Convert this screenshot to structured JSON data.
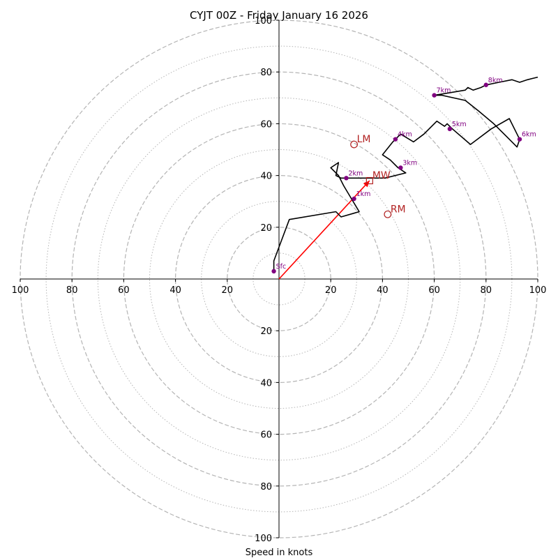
{
  "chart_data": {
    "type": "hodograph",
    "title": "CYJT 00Z - Friday January 16 2026",
    "xlabel": "Speed in knots",
    "max_speed": 100,
    "ring_step_major": 20,
    "ring_step_minor": 10,
    "x_tick_labels": [
      "100",
      "80",
      "60",
      "40",
      "20",
      "20",
      "40",
      "60",
      "80",
      "100"
    ],
    "y_tick_labels": [
      "100",
      "80",
      "60",
      "40",
      "20",
      "20",
      "40",
      "60",
      "80",
      "100"
    ],
    "colors": {
      "profile": "#000000",
      "height_marker": "#800080",
      "storm_marker": "#b22222",
      "shear_vector": "#ff0000",
      "ring": "#b4b4b4"
    },
    "profile": [
      [
        -2,
        3
      ],
      [
        -2,
        7
      ],
      [
        4,
        23
      ],
      [
        22,
        26
      ],
      [
        24,
        24
      ],
      [
        31,
        26
      ],
      [
        28,
        31
      ],
      [
        25,
        36
      ],
      [
        23,
        40
      ],
      [
        20,
        43
      ],
      [
        23,
        45
      ],
      [
        22,
        40
      ],
      [
        24,
        39
      ],
      [
        29,
        39
      ],
      [
        34,
        39
      ],
      [
        41,
        39
      ],
      [
        49,
        41
      ],
      [
        46,
        43
      ],
      [
        43,
        46
      ],
      [
        40,
        48
      ],
      [
        44,
        53
      ],
      [
        47,
        56
      ],
      [
        52,
        53
      ],
      [
        56,
        56
      ],
      [
        61,
        61
      ],
      [
        64,
        59
      ],
      [
        65,
        60
      ],
      [
        67,
        58
      ],
      [
        74,
        52
      ],
      [
        82,
        58
      ],
      [
        89,
        62
      ],
      [
        93,
        54
      ],
      [
        92,
        51
      ],
      [
        88,
        55
      ],
      [
        83,
        60
      ],
      [
        77,
        65
      ],
      [
        72,
        69
      ],
      [
        63,
        71
      ],
      [
        60,
        71
      ],
      [
        66,
        72
      ],
      [
        72,
        73
      ],
      [
        73,
        74
      ],
      [
        75,
        73
      ],
      [
        78,
        74
      ],
      [
        80,
        75
      ],
      [
        85,
        76
      ],
      [
        90,
        77
      ],
      [
        93,
        76
      ],
      [
        96,
        77
      ],
      [
        100,
        78
      ]
    ],
    "height_markers": [
      {
        "label": "Sfc",
        "u": -2,
        "v": 3
      },
      {
        "label": "1km",
        "u": 29,
        "v": 31
      },
      {
        "label": "2km",
        "u": 26,
        "v": 39
      },
      {
        "label": "3km",
        "u": 47,
        "v": 43
      },
      {
        "label": "4km",
        "u": 45,
        "v": 54
      },
      {
        "label": "5km",
        "u": 66,
        "v": 58
      },
      {
        "label": "6km",
        "u": 93,
        "v": 54
      },
      {
        "label": "7km",
        "u": 60,
        "v": 71
      },
      {
        "label": "8km",
        "u": 80,
        "v": 75
      }
    ],
    "storm_motion": [
      {
        "label": "LM",
        "u": 29,
        "v": 52,
        "shape": "circle"
      },
      {
        "label": "RM",
        "u": 42,
        "v": 25,
        "shape": "circle"
      },
      {
        "label": "MW",
        "u": 35,
        "v": 38,
        "shape": "square"
      }
    ],
    "shear_vector": {
      "u0": 0,
      "v0": 0,
      "u1": 35,
      "v1": 38
    }
  }
}
